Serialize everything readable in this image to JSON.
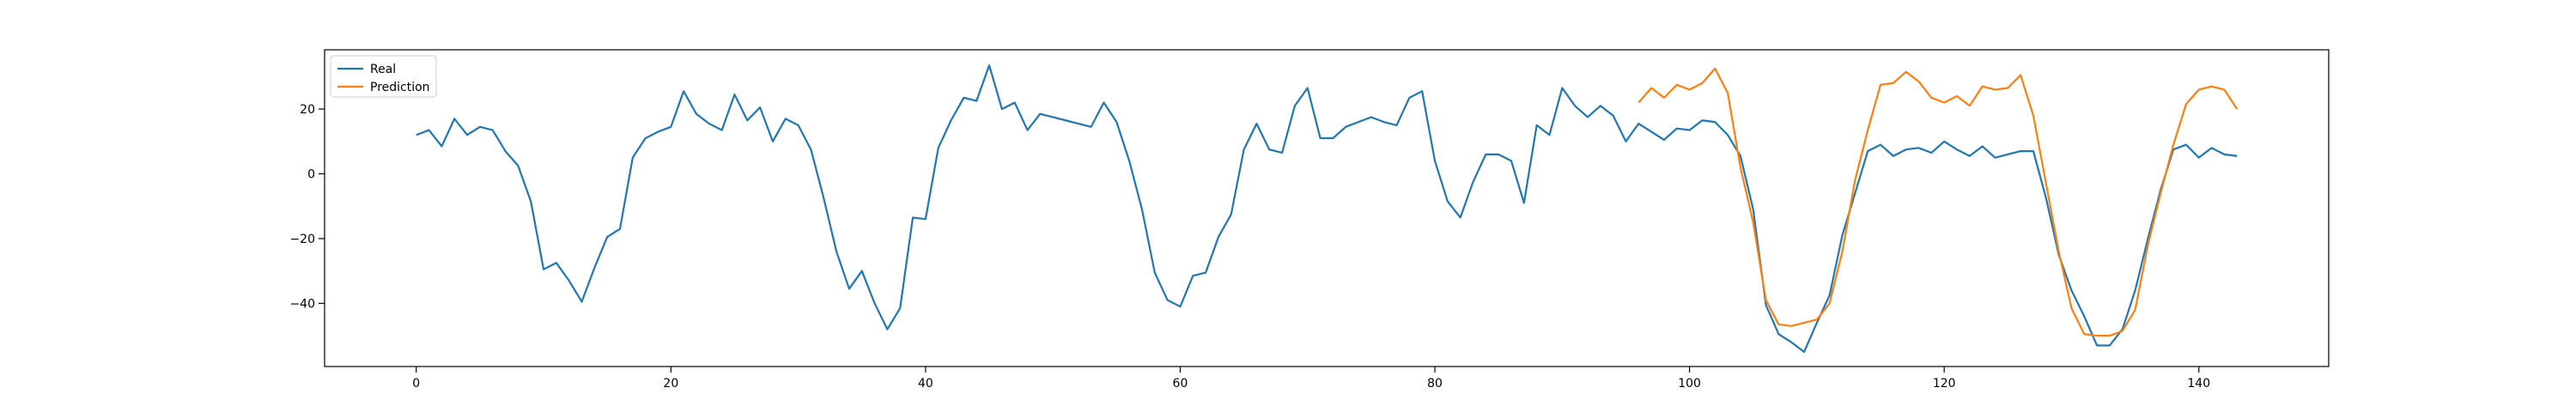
{
  "chart_data": {
    "type": "line",
    "title": "",
    "xlabel": "",
    "ylabel": "",
    "xlim": [
      -7.2,
      150.2
    ],
    "ylim": [
      -59.5,
      38.3
    ],
    "xticks": [
      0,
      20,
      40,
      60,
      80,
      100,
      120,
      140
    ],
    "yticks": [
      -40,
      -20,
      0,
      20
    ],
    "grid": false,
    "legend_position": "upper left",
    "series": [
      {
        "name": "Real",
        "color": "#1f77b4",
        "x": [
          0,
          1,
          2,
          3,
          4,
          5,
          6,
          7,
          8,
          9,
          10,
          11,
          12,
          13,
          14,
          15,
          16,
          17,
          18,
          19,
          20,
          21,
          22,
          23,
          24,
          25,
          26,
          27,
          28,
          29,
          30,
          31,
          32,
          33,
          34,
          35,
          36,
          37,
          38,
          39,
          40,
          41,
          42,
          43,
          44,
          45,
          46,
          47,
          48,
          49,
          50,
          51,
          52,
          53,
          54,
          55,
          56,
          57,
          58,
          59,
          60,
          61,
          62,
          63,
          64,
          65,
          66,
          67,
          68,
          69,
          70,
          71,
          72,
          73,
          74,
          75,
          76,
          77,
          78,
          79,
          80,
          81,
          82,
          83,
          84,
          85,
          86,
          87,
          88,
          89,
          90,
          91,
          92,
          93,
          94,
          95,
          96,
          97,
          98,
          99,
          100,
          101,
          102,
          103,
          104,
          105,
          106,
          107,
          108,
          109,
          110,
          111,
          112,
          113,
          114,
          115,
          116,
          117,
          118,
          119,
          120,
          121,
          122,
          123,
          124,
          125,
          126,
          127,
          128,
          129,
          130,
          131,
          132,
          133,
          134,
          135,
          136,
          137,
          138,
          139,
          140,
          141,
          142,
          143
        ],
        "y": [
          12,
          13.5,
          8.5,
          17,
          12,
          14.5,
          13.5,
          7,
          2.5,
          -8.5,
          -29.5,
          -27.5,
          -33,
          -39.5,
          -29,
          -19.5,
          -17,
          5,
          11,
          13,
          14.5,
          25.5,
          18.5,
          15.5,
          13.5,
          24.5,
          16.5,
          20.5,
          10,
          17,
          15,
          7.5,
          -7.5,
          -24,
          -35.5,
          -30,
          -40,
          -48,
          -41.5,
          -13.5,
          -14,
          8,
          16.5,
          23.5,
          22.5,
          33.5,
          20,
          22,
          13.5,
          18.5,
          17.5,
          16.5,
          15.5,
          14.5,
          22,
          16,
          4,
          -11,
          -30.5,
          -39,
          -41,
          -31.5,
          -30.5,
          -19.5,
          -12.5,
          7.5,
          15.5,
          7.5,
          6.5,
          21,
          26.5,
          11,
          11,
          14.5,
          16,
          17.5,
          16,
          15,
          23.5,
          25.5,
          4,
          -8.5,
          -13.5,
          -2.5,
          6,
          6,
          4,
          -9,
          15,
          12,
          26.5,
          21,
          17.5,
          21,
          18,
          10,
          15.5,
          13,
          10.5,
          14,
          13.5,
          16.5,
          16,
          12,
          5.5,
          -11,
          -40.5,
          -49.5,
          -52,
          -55,
          -46,
          -37.5,
          -19,
          -6,
          7,
          9,
          5.5,
          7.5,
          8,
          6.5,
          10,
          7.5,
          5.5,
          8.5,
          5,
          6,
          7,
          7,
          -7.5,
          -25,
          -36,
          -44,
          -53,
          -53,
          -48,
          -36,
          -20,
          -5,
          7.5,
          9,
          5,
          8,
          6,
          5.5
        ]
      },
      {
        "name": "Prediction",
        "color": "#ff7f0e",
        "x": [
          96,
          97,
          98,
          99,
          100,
          101,
          102,
          103,
          104,
          105,
          106,
          107,
          108,
          109,
          110,
          111,
          112,
          113,
          114,
          115,
          116,
          117,
          118,
          119,
          120,
          121,
          122,
          123,
          124,
          125,
          126,
          127,
          128,
          129,
          130,
          131,
          132,
          133,
          134,
          135,
          136,
          137,
          138,
          139,
          140,
          141,
          142,
          143
        ],
        "y": [
          22,
          26.5,
          23.5,
          27.5,
          26,
          28,
          32.5,
          25,
          2,
          -15,
          -39,
          -46.5,
          -47,
          -46,
          -45,
          -40,
          -24,
          -2,
          13.5,
          27.5,
          28,
          31.5,
          28.5,
          23.5,
          22,
          24,
          21,
          27,
          26,
          26.5,
          30.5,
          18,
          -3,
          -24,
          -41.5,
          -49.5,
          -50,
          -50,
          -48.5,
          -42,
          -22,
          -6,
          9,
          21.5,
          26,
          27,
          26,
          20
        ]
      }
    ]
  }
}
